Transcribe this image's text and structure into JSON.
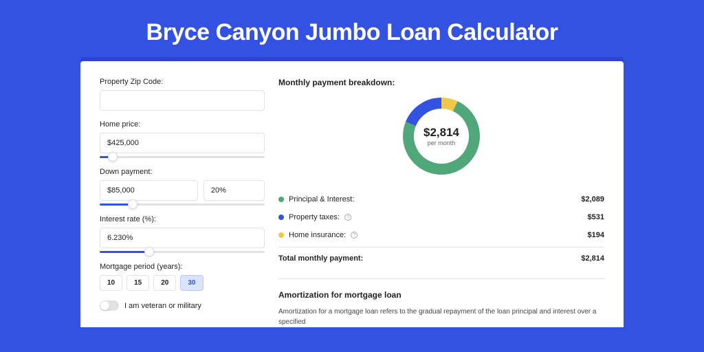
{
  "page": {
    "title": "Bryce Canyon Jumbo Loan Calculator",
    "background_color": "#3452e1",
    "card_background": "#ffffff"
  },
  "form": {
    "zip": {
      "label": "Property Zip Code:",
      "value": ""
    },
    "home_price": {
      "label": "Home price:",
      "value": "$425,000",
      "slider_pct": 8
    },
    "down_payment": {
      "label": "Down payment:",
      "value": "$85,000",
      "pct": "20%",
      "slider_pct": 20
    },
    "interest": {
      "label": "Interest rate (%):",
      "value": "6.230%",
      "slider_pct": 30
    },
    "period": {
      "label": "Mortgage period (years):",
      "options": [
        "10",
        "15",
        "20",
        "30"
      ],
      "selected": "30"
    },
    "veteran": {
      "label": "I am veteran or military",
      "on": false
    }
  },
  "breakdown": {
    "title": "Monthly payment breakdown:",
    "center_amount": "$2,814",
    "center_sub": "per month",
    "items": [
      {
        "key": "pi",
        "label": "Principal & Interest:",
        "value": "$2,089",
        "color": "#4fa77a",
        "has_info": false
      },
      {
        "key": "tax",
        "label": "Property taxes:",
        "value": "$531",
        "color": "#3452e1",
        "has_info": true
      },
      {
        "key": "ins",
        "label": "Home insurance:",
        "value": "$194",
        "color": "#f0c94a",
        "has_info": true
      }
    ],
    "total": {
      "label": "Total monthly payment:",
      "value": "$2,814"
    },
    "donut": {
      "slices": [
        {
          "color": "#4fa77a",
          "pct": 74.2
        },
        {
          "color": "#3452e1",
          "pct": 18.9
        },
        {
          "color": "#f0c94a",
          "pct": 6.9
        }
      ],
      "stroke_width": 16
    }
  },
  "amortization": {
    "title": "Amortization for mortgage loan",
    "text": "Amortization for a mortgage loan refers to the gradual repayment of the loan principal and interest over a specified"
  }
}
